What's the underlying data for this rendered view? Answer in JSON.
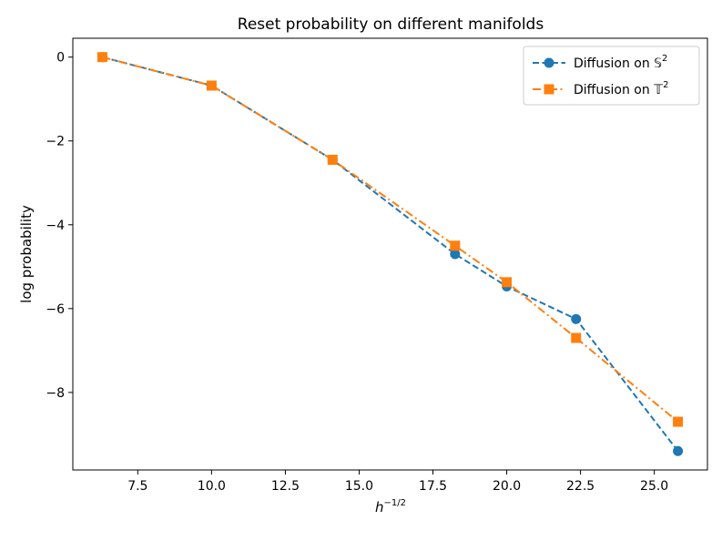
{
  "chart_data": {
    "type": "line",
    "title": "Reset probability on different manifolds",
    "xlabel_base": "h",
    "xlabel_exp": "−1/2",
    "ylabel": "log probability",
    "xlim": [
      5.3,
      26.8
    ],
    "ylim": [
      -9.85,
      0.45
    ],
    "xticks": [
      7.5,
      10.0,
      12.5,
      15.0,
      17.5,
      20.0,
      22.5,
      25.0
    ],
    "xtick_labels": [
      "7.5",
      "10.0",
      "12.5",
      "15.0",
      "17.5",
      "20.0",
      "22.5",
      "25.0"
    ],
    "yticks": [
      0,
      -2,
      -4,
      -6,
      -8
    ],
    "ytick_labels": [
      "0",
      "−2",
      "−4",
      "−6",
      "−8"
    ],
    "legend_position": "top-right",
    "series": [
      {
        "name": "Diffusion on 𝕊²",
        "legend_base": "Diffusion on 𝕊",
        "legend_sup": "2",
        "color": "#1f77b4",
        "marker": "circle",
        "linestyle": "dashed",
        "x": [
          6.3,
          10.0,
          14.1,
          18.25,
          20.0,
          22.35,
          25.8
        ],
        "y": [
          0.0,
          -0.68,
          -2.45,
          -4.7,
          -5.47,
          -6.25,
          -9.4
        ]
      },
      {
        "name": "Diffusion on 𝕋²",
        "legend_base": "Diffusion on 𝕋",
        "legend_sup": "2",
        "color": "#ff7f0e",
        "marker": "square",
        "linestyle": "dashdot",
        "x": [
          6.3,
          10.0,
          14.1,
          18.25,
          20.0,
          22.35,
          25.8
        ],
        "y": [
          0.0,
          -0.68,
          -2.45,
          -4.5,
          -5.37,
          -6.7,
          -8.7
        ]
      }
    ]
  }
}
